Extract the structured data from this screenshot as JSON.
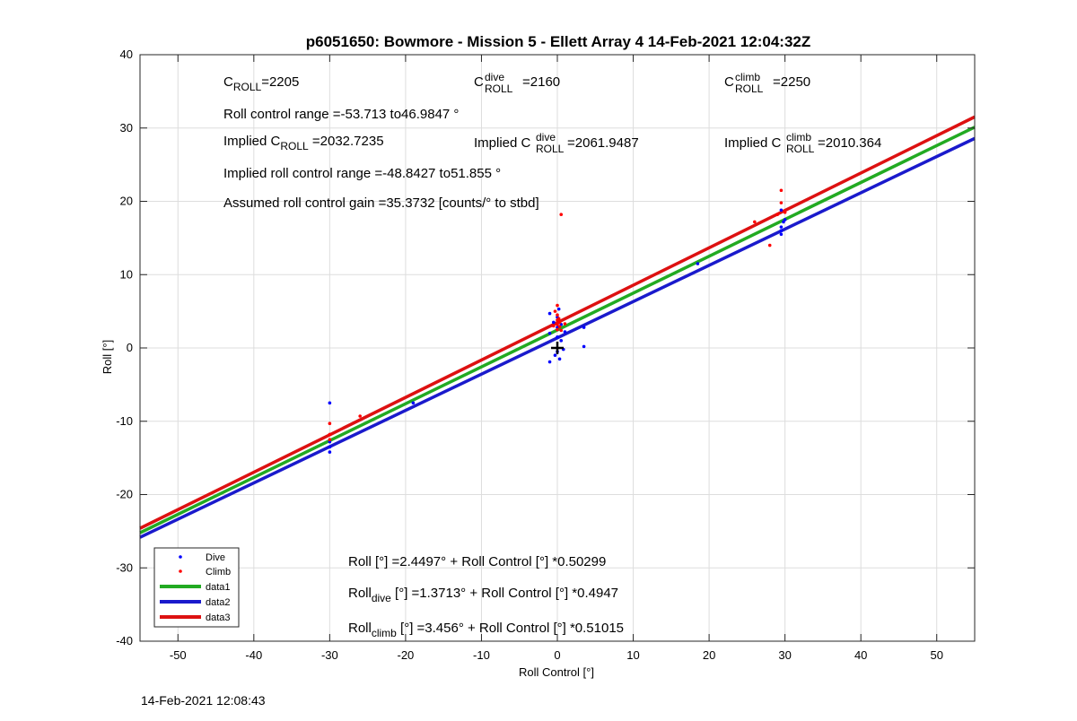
{
  "footer_timestamp": "14-Feb-2021 12:08:43",
  "chart_data": {
    "type": "scatter",
    "title": "p6051650: Bowmore - Mission 5 - Ellett Array 4 14-Feb-2021 12:04:32Z",
    "xlabel": "Roll Control [°]",
    "ylabel": "Roll [°]",
    "xlim": [
      -55,
      55
    ],
    "ylim": [
      -40,
      40
    ],
    "xticks": [
      -50,
      -40,
      -30,
      -20,
      -10,
      0,
      10,
      20,
      30,
      40,
      50
    ],
    "yticks": [
      -40,
      -30,
      -20,
      -10,
      0,
      10,
      20,
      30,
      40
    ],
    "grid": true,
    "legend_location": "bottom-left",
    "colors": {
      "dive": "#0000ff",
      "climb": "#ff0000",
      "data1": "#22aa22",
      "data2": "#1a1acc",
      "data3": "#dd1111"
    },
    "annotations": {
      "c_roll": {
        "main": "C",
        "sub": "ROLL",
        "rest": "=2205"
      },
      "c_roll_dive": {
        "main": "C",
        "sup": "dive",
        "sub": "ROLL",
        "rest": "=2160"
      },
      "c_roll_climb": {
        "main": "C",
        "sup": "climb",
        "sub": "ROLL",
        "rest": "=2250"
      },
      "roll_range": "Roll control range =-53.713 to46.9847 °",
      "implied_c_roll": {
        "pre": "Implied C",
        "sub": "ROLL",
        "rest": " =2032.7235"
      },
      "implied_c_roll_dive": {
        "pre": "Implied C",
        "sup": "dive",
        "sub": "ROLL",
        "rest": " =2061.9487"
      },
      "implied_c_roll_climb": {
        "pre": "Implied C",
        "sup": "climb",
        "sub": "ROLL",
        "rest": " =2010.364"
      },
      "implied_range": "Implied roll control range =-48.8427 to51.855 °",
      "gain": "Assumed roll control gain =35.3732 [counts/° to stbd]",
      "fit_all": {
        "pre": "Roll",
        "sub": "",
        "rest": " [°] =2.4497° + Roll Control [°] *0.50299"
      },
      "fit_dive": {
        "pre": "Roll",
        "sub": "dive",
        "rest": " [°] =1.3713° + Roll Control [°] *0.4947"
      },
      "fit_climb": {
        "pre": "Roll",
        "sub": "climb",
        "rest": " [°] =3.456° + Roll Control [°] *0.51015"
      }
    },
    "series": [
      {
        "name": "Dive",
        "kind": "points",
        "color": "#0000ff",
        "points": [
          [
            -30,
            -7.5
          ],
          [
            -30,
            -13.5
          ],
          [
            -30,
            -14.2
          ],
          [
            -30,
            -12.8
          ],
          [
            -19,
            -7.5
          ],
          [
            -1,
            4.7
          ],
          [
            -1,
            -1.9
          ],
          [
            -1,
            2.0
          ],
          [
            -0.5,
            3.5
          ],
          [
            -0.3,
            -1.0
          ],
          [
            0,
            1.5
          ],
          [
            0,
            2.8
          ],
          [
            0,
            4.2
          ],
          [
            0,
            -0.5
          ],
          [
            0.2,
            5.3
          ],
          [
            0.3,
            -1.5
          ],
          [
            0.5,
            1.0
          ],
          [
            0.5,
            3.2
          ],
          [
            0.8,
            -0.2
          ],
          [
            1.0,
            2.2
          ],
          [
            3.5,
            2.8
          ],
          [
            3.5,
            0.2
          ],
          [
            18.5,
            11.5
          ],
          [
            29.5,
            15.5
          ],
          [
            29.5,
            16.0
          ],
          [
            29.5,
            16.5
          ],
          [
            29.8,
            17.2
          ],
          [
            29.5,
            18.8
          ],
          [
            30,
            17.5
          ]
        ]
      },
      {
        "name": "Climb",
        "kind": "points",
        "color": "#ff0000",
        "points": [
          [
            -30,
            -10.3
          ],
          [
            -30,
            -11.8
          ],
          [
            -30,
            -12.5
          ],
          [
            -26,
            -9.3
          ],
          [
            -0.5,
            3.0
          ],
          [
            -0.3,
            5.0
          ],
          [
            0,
            5.8
          ],
          [
            0,
            4.5
          ],
          [
            0,
            3.8
          ],
          [
            0,
            3.2
          ],
          [
            0,
            2.5
          ],
          [
            0.2,
            4.0
          ],
          [
            0.3,
            3.5
          ],
          [
            0.3,
            2.9
          ],
          [
            0.5,
            2.4
          ],
          [
            0.5,
            18.2
          ],
          [
            1.0,
            3.3
          ],
          [
            26,
            17.2
          ],
          [
            28,
            14.0
          ],
          [
            29,
            18.2
          ],
          [
            29.5,
            19.8
          ],
          [
            29.5,
            21.5
          ],
          [
            30,
            18.5
          ]
        ]
      },
      {
        "name": "data1",
        "kind": "line",
        "color": "#22aa22",
        "intercept": 2.4497,
        "slope": 0.50299
      },
      {
        "name": "data2",
        "kind": "line",
        "color": "#1a1acc",
        "intercept": 1.3713,
        "slope": 0.4947
      },
      {
        "name": "data3",
        "kind": "line",
        "color": "#dd1111",
        "intercept": 3.456,
        "slope": 0.51015
      }
    ]
  }
}
